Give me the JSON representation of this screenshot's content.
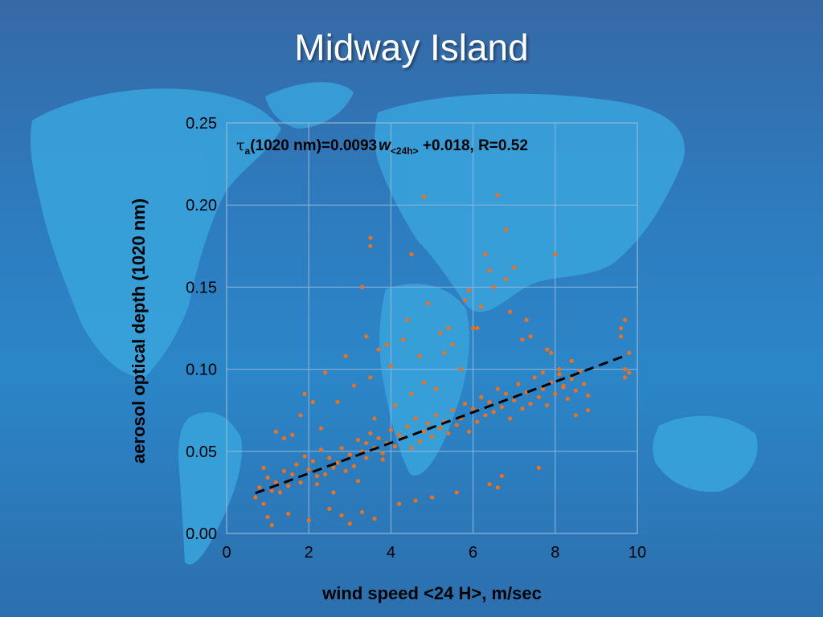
{
  "slide": {
    "title": "Midway Island"
  },
  "colors": {
    "background": "#2b7cc0",
    "landmass": "#39a4dc",
    "points": "#f07019",
    "fit_line": "#000000",
    "grid": "#8fb8da",
    "text": "#000000"
  },
  "chart_data": {
    "type": "scatter",
    "title": "",
    "xlabel": "wind speed <24 H>, m/sec",
    "ylabel": "aerosol optical depth (1020 nm)",
    "xlim": [
      0,
      10
    ],
    "ylim": [
      0,
      0.25
    ],
    "x_ticks": [
      "0",
      "2",
      "4",
      "6",
      "8",
      "10"
    ],
    "y_ticks": [
      "0.00",
      "0.05",
      "0.10",
      "0.15",
      "0.20",
      "0.25"
    ],
    "grid": true,
    "annotation": {
      "tau": "τ",
      "tau_sub": "a",
      "prefix": "(1020 nm)=0.0093",
      "var": "w",
      "var_sub": "<24h>",
      "suffix": " +0.018, R=0.52"
    },
    "fit_line": {
      "slope": 0.0093,
      "intercept": 0.018,
      "x_range": [
        0.7,
        9.7
      ],
      "style": "dashed"
    },
    "series": [
      {
        "marker": "dot",
        "x": [
          0.7,
          0.8,
          0.9,
          1.0,
          1.1,
          1.2,
          1.3,
          1.4,
          1.5,
          1.6,
          1.7,
          1.8,
          1.9,
          2.0,
          2.1,
          2.2,
          2.3,
          2.4,
          2.5,
          2.6,
          2.7,
          2.8,
          2.9,
          3.0,
          3.1,
          3.2,
          3.3,
          3.4,
          3.5,
          3.6,
          3.7,
          3.8,
          3.9,
          4.0,
          4.1,
          4.2,
          4.3,
          4.4,
          4.5,
          4.6,
          4.7,
          4.8,
          4.9,
          5.0,
          5.1,
          5.2,
          5.3,
          5.4,
          5.5,
          5.6,
          5.7,
          5.8,
          5.9,
          6.0,
          6.1,
          6.2,
          6.3,
          6.4,
          6.5,
          6.6,
          6.7,
          6.8,
          6.9,
          7.0,
          7.1,
          7.2,
          7.3,
          7.4,
          7.5,
          7.6,
          7.7,
          7.8,
          7.9,
          8.0,
          8.1,
          8.2,
          8.3,
          8.4,
          8.5,
          8.6,
          8.7,
          8.8,
          9.6,
          9.7,
          9.8,
          1.0,
          1.1,
          1.5,
          2.0,
          2.5,
          2.8,
          3.0,
          3.3,
          3.6,
          4.2,
          4.6,
          5.0,
          5.6,
          6.4,
          6.6,
          6.7,
          7.6,
          8.5,
          8.8,
          9.7,
          1.2,
          1.9,
          2.4,
          2.9,
          3.4,
          3.9,
          4.4,
          4.9,
          5.4,
          5.9,
          6.4,
          6.9,
          7.4,
          7.9,
          8.4,
          9.7,
          0.9,
          1.4,
          1.8,
          2.3,
          2.7,
          3.1,
          3.5,
          3.7,
          4.0,
          4.3,
          4.7,
          5.2,
          5.5,
          5.8,
          6.1,
          6.3,
          6.8,
          7.2,
          7.7,
          8.2,
          9.6,
          2.2,
          2.6,
          3.0,
          3.2,
          3.4,
          3.6,
          3.8,
          4.1,
          4.5,
          4.8,
          5.1,
          5.3,
          5.7,
          6.0,
          6.2,
          6.5,
          7.0,
          7.3,
          7.8,
          8.1,
          9.8,
          1.6,
          2.1,
          3.5,
          4.8,
          6.6,
          8.0,
          3.3,
          3.5,
          4.5,
          6.8
        ],
        "y": [
          0.022,
          0.028,
          0.018,
          0.034,
          0.026,
          0.031,
          0.025,
          0.038,
          0.029,
          0.036,
          0.042,
          0.031,
          0.047,
          0.039,
          0.044,
          0.035,
          0.051,
          0.036,
          0.046,
          0.04,
          0.043,
          0.052,
          0.038,
          0.048,
          0.041,
          0.057,
          0.05,
          0.046,
          0.061,
          0.052,
          0.058,
          0.049,
          0.055,
          0.063,
          0.053,
          0.06,
          0.058,
          0.065,
          0.052,
          0.07,
          0.056,
          0.062,
          0.067,
          0.059,
          0.072,
          0.064,
          0.068,
          0.061,
          0.075,
          0.066,
          0.07,
          0.079,
          0.062,
          0.076,
          0.068,
          0.083,
          0.072,
          0.08,
          0.074,
          0.088,
          0.077,
          0.085,
          0.07,
          0.081,
          0.091,
          0.076,
          0.086,
          0.079,
          0.095,
          0.083,
          0.088,
          0.078,
          0.092,
          0.085,
          0.097,
          0.089,
          0.082,
          0.094,
          0.087,
          0.099,
          0.091,
          0.084,
          0.12,
          0.1,
          0.11,
          0.01,
          0.005,
          0.012,
          0.008,
          0.015,
          0.011,
          0.006,
          0.013,
          0.009,
          0.018,
          0.02,
          0.022,
          0.025,
          0.03,
          0.028,
          0.035,
          0.04,
          0.072,
          0.075,
          0.095,
          0.062,
          0.085,
          0.098,
          0.108,
          0.12,
          0.115,
          0.13,
          0.14,
          0.125,
          0.148,
          0.16,
          0.135,
          0.12,
          0.11,
          0.105,
          0.13,
          0.04,
          0.058,
          0.072,
          0.064,
          0.08,
          0.09,
          0.095,
          0.112,
          0.102,
          0.118,
          0.108,
          0.122,
          0.115,
          0.142,
          0.125,
          0.17,
          0.155,
          0.118,
          0.098,
          0.09,
          0.125,
          0.03,
          0.025,
          0.048,
          0.032,
          0.055,
          0.07,
          0.045,
          0.078,
          0.085,
          0.092,
          0.088,
          0.11,
          0.1,
          0.125,
          0.138,
          0.15,
          0.162,
          0.13,
          0.112,
          0.1,
          0.098,
          0.06,
          0.08,
          0.18,
          0.205,
          0.206,
          0.17,
          0.15,
          0.175,
          0.17,
          0.185
        ]
      }
    ]
  }
}
